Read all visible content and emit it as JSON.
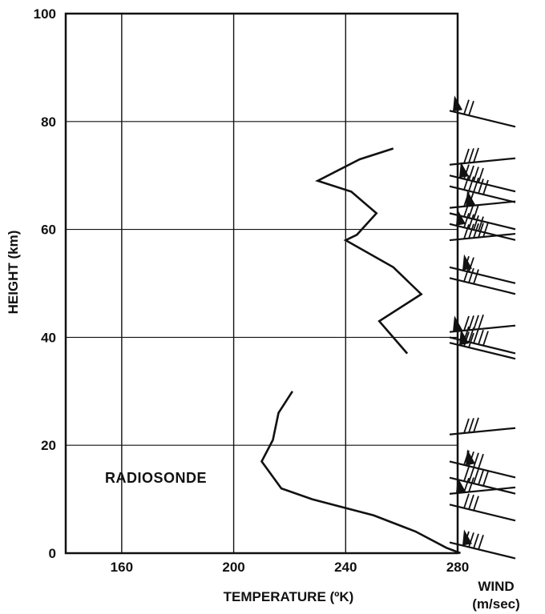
{
  "chart_data": {
    "type": "line",
    "xlabel": "TEMPERATURE (ºK)",
    "ylabel": "HEIGHT (km)",
    "xlim": [
      140,
      280
    ],
    "ylim": [
      0,
      100
    ],
    "x_ticks": [
      160,
      200,
      240,
      280
    ],
    "y_ticks": [
      0,
      20,
      40,
      60,
      80,
      100
    ],
    "grid": true,
    "series": [
      {
        "name": "",
        "points": [
          [
            257,
            75
          ],
          [
            245,
            73
          ],
          [
            230,
            69
          ],
          [
            242,
            67
          ],
          [
            251,
            63
          ],
          [
            244,
            59
          ],
          [
            240,
            58
          ],
          [
            257,
            53
          ],
          [
            267,
            48
          ],
          [
            252,
            43
          ],
          [
            262,
            37
          ]
        ]
      },
      {
        "name": "RADIOSONDE",
        "points": [
          [
            281,
            0
          ],
          [
            276,
            1
          ],
          [
            265,
            4
          ],
          [
            250,
            7
          ],
          [
            228,
            10
          ],
          [
            217,
            12
          ],
          [
            210,
            17
          ],
          [
            214,
            21
          ],
          [
            216,
            26
          ],
          [
            221,
            30
          ]
        ]
      }
    ],
    "annotations": [
      {
        "text": "RADIOSONDE",
        "x": 185,
        "y": 14
      }
    ],
    "wind_panel": {
      "label": "WIND",
      "units": "(m/sec)",
      "barb_heights_km": [
        82,
        72,
        70,
        68,
        64,
        63,
        61,
        58,
        53,
        51,
        41,
        40,
        39,
        22,
        17,
        14,
        11,
        9,
        2
      ]
    }
  }
}
